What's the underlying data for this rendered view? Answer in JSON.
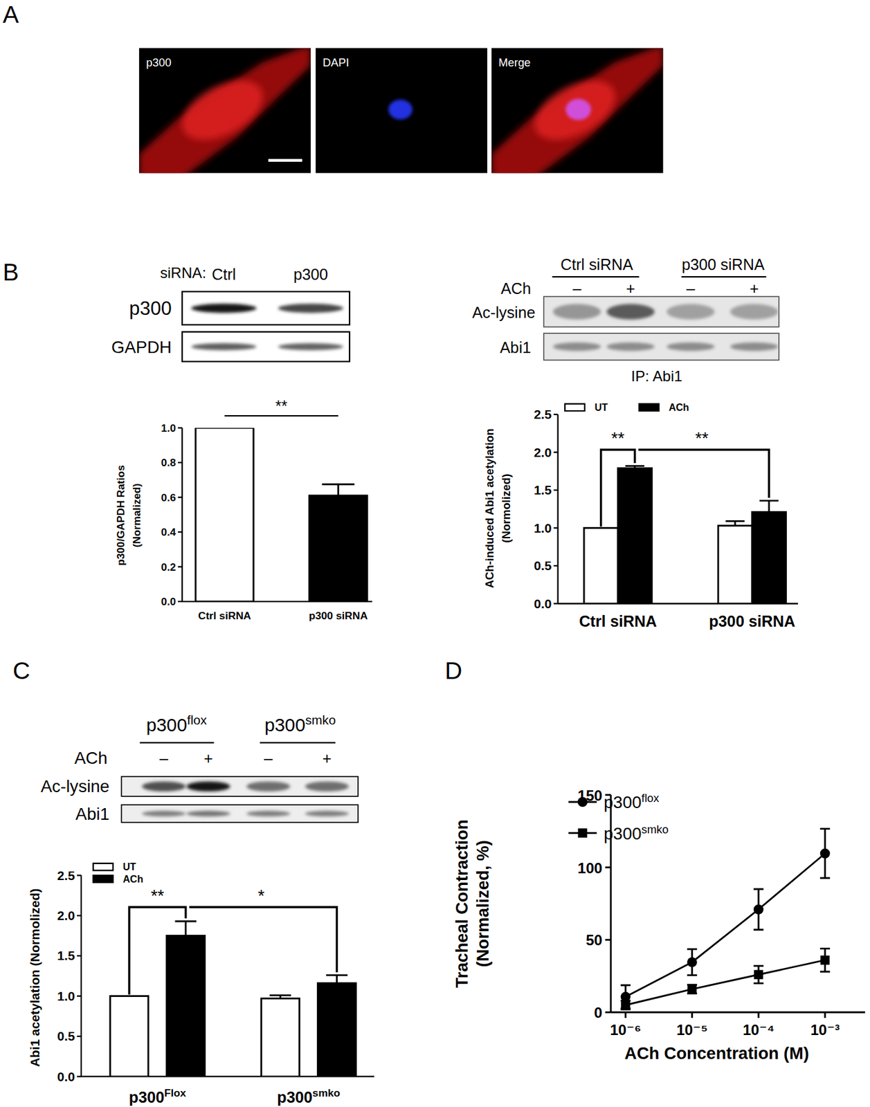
{
  "figure": {
    "panel_labels": [
      "A",
      "B",
      "C",
      "D"
    ],
    "panel_a": {
      "channels": [
        "p300",
        "DAPI",
        "Merge"
      ]
    },
    "blot_b1": {
      "header": "siRNA:",
      "lanes": [
        "Ctrl",
        "p300"
      ],
      "rows": [
        "p300",
        "GAPDH"
      ]
    },
    "blot_b2": {
      "groups": [
        "Ctrl siRNA",
        "p300 siRNA"
      ],
      "treatment": "ACh",
      "signs": [
        "–",
        "+",
        "–",
        "+"
      ],
      "rows": [
        "Ac-lysine",
        "Abi1"
      ],
      "footer": "IP: Abi1"
    },
    "blot_c": {
      "groups": [
        "p300",
        "p300"
      ],
      "group_superscripts": [
        "flox",
        "smko"
      ],
      "treatment": "ACh",
      "signs": [
        "–",
        "+",
        "–",
        "+"
      ],
      "rows": [
        "Ac-lysine",
        "Abi1"
      ]
    }
  },
  "chart_data": [
    {
      "type": "bar",
      "y_label": [
        "p300/GAPDH Ratios",
        "(Normalized)"
      ],
      "categories": [
        "Ctrl siRNA",
        "p300 siRNA"
      ],
      "values": [
        1.0,
        0.61
      ],
      "errors": [
        null,
        0.065
      ],
      "colors": [
        "#ffffff",
        "#000000"
      ],
      "ylim": [
        0,
        1
      ],
      "yticks": [
        {
          "value": 0,
          "label": "0.0"
        },
        0.2,
        0.4,
        0.6,
        0.8,
        {
          "value": 1,
          "label": "1.0"
        }
      ],
      "annotations": [
        "**"
      ]
    },
    {
      "type": "bar",
      "y_label": [
        "ACh-induced Abi1 acetylation",
        "(Normolized)"
      ],
      "categories": [
        "Ctrl siRNA",
        "p300 siRNA"
      ],
      "series": [
        {
          "name": "UT",
          "color": "#ffffff",
          "values": [
            1.0,
            1.03
          ],
          "errors": [
            null,
            0.06
          ]
        },
        {
          "name": "ACh",
          "color": "#000000",
          "values": [
            1.79,
            1.21
          ],
          "errors": [
            0.03,
            0.15
          ]
        }
      ],
      "ylim": [
        0,
        2.5
      ],
      "yticks": [
        {
          "value": 0,
          "label": "0.0"
        },
        0.5,
        {
          "value": 1,
          "label": "1.0"
        },
        1.5,
        {
          "value": 2,
          "label": "2.0"
        },
        2.5
      ],
      "legend": "top",
      "annotations": [
        "**",
        "**"
      ]
    },
    {
      "type": "bar",
      "y_label": [
        "Abi1 acetylation (Normolized)"
      ],
      "categories": [
        "p300",
        "p300"
      ],
      "category_superscripts": [
        "Flox",
        "smko"
      ],
      "series": [
        {
          "name": "UT",
          "color": "#ffffff",
          "values": [
            1.0,
            0.97
          ],
          "errors": [
            null,
            0.04
          ]
        },
        {
          "name": "ACh",
          "color": "#000000",
          "values": [
            1.75,
            1.16
          ],
          "errors": [
            0.18,
            0.1
          ]
        }
      ],
      "ylim": [
        0,
        2.5
      ],
      "yticks": [
        {
          "value": 0,
          "label": "0.0"
        },
        0.5,
        {
          "value": 1,
          "label": "1.0"
        },
        1.5,
        {
          "value": 2,
          "label": "2.0"
        },
        2.5
      ],
      "legend": "top-left",
      "annotations": [
        "**",
        "*"
      ]
    },
    {
      "type": "line",
      "log": "x",
      "x_label": "ACh Concentration (M)",
      "y_label": [
        "Tracheal Contraction",
        "(Normalized, %)"
      ],
      "x": [
        1e-06,
        1e-05,
        0.0001,
        0.001
      ],
      "xlim": [
        6e-07,
        0.004
      ],
      "xticks": [
        {
          "value": 1e-06,
          "label": "10⁻⁶"
        },
        {
          "value": 1e-05,
          "label": "10⁻⁵"
        },
        {
          "value": 0.0001,
          "label": "10⁻⁴"
        },
        {
          "value": 0.001,
          "label": "10⁻³"
        }
      ],
      "ylim": [
        0,
        150
      ],
      "yticks": [
        0,
        50,
        100,
        150
      ],
      "legend": "top-left",
      "series": [
        {
          "name": "p300",
          "name_superscript": "flox",
          "color": "#000000",
          "marker": "circle",
          "values": [
            10.7,
            34.6,
            71,
            109.6
          ],
          "errors": [
            8,
            9,
            14,
            17
          ]
        },
        {
          "name": "p300",
          "name_superscript": "smko",
          "color": "#000000",
          "marker": "square",
          "values": [
            5,
            16,
            26,
            36
          ],
          "errors": [
            3,
            3,
            6,
            8
          ]
        }
      ]
    }
  ]
}
